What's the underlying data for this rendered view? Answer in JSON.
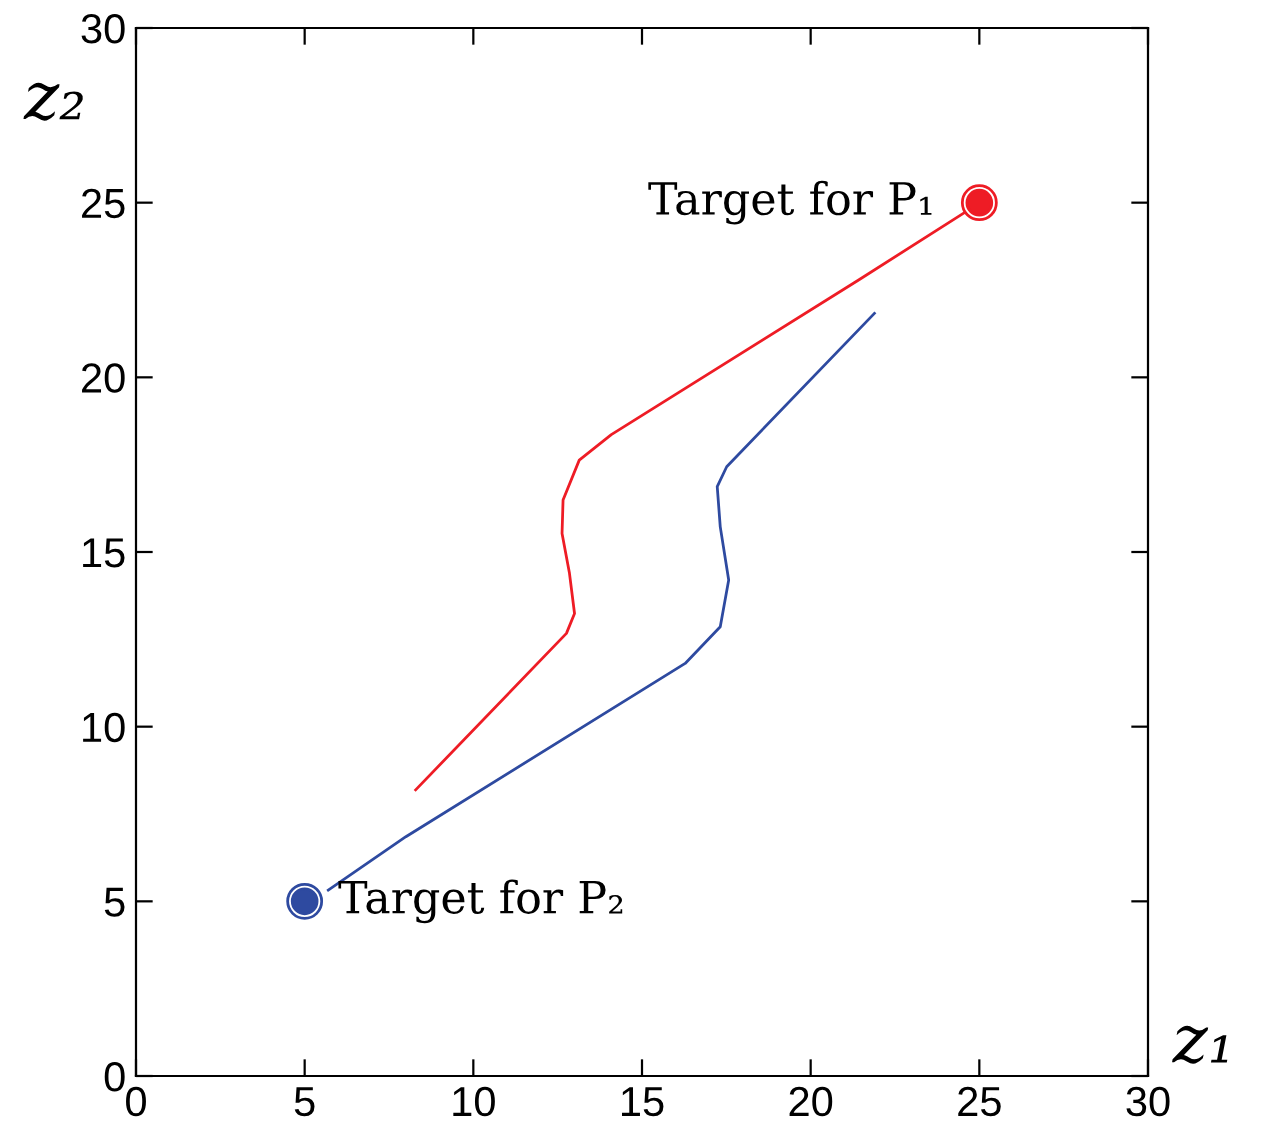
{
  "chart_data": {
    "type": "line",
    "xlabel": "z₁",
    "ylabel": "z₂",
    "xlim": [
      0,
      30
    ],
    "ylim": [
      0,
      30
    ],
    "xticks": [
      0,
      5,
      10,
      15,
      20,
      25,
      30
    ],
    "yticks": [
      0,
      5,
      10,
      15,
      20,
      25,
      30
    ],
    "grid": false,
    "legend": false,
    "series": [
      {
        "color": "#ee1c25",
        "x": [
          8.29,
          12.76,
          13.0,
          12.85,
          12.63,
          12.66,
          13.14,
          14.09,
          21.41,
          24.7
        ],
        "values": [
          8.19,
          12.67,
          13.24,
          14.39,
          15.53,
          16.49,
          17.63,
          18.36,
          22.78,
          24.8
        ]
      },
      {
        "color": "#2e4aa0",
        "x": [
          5.7,
          8.0,
          16.28,
          17.32,
          17.57,
          17.32,
          17.23,
          17.51,
          21.89
        ],
        "values": [
          5.32,
          6.85,
          11.81,
          12.86,
          14.2,
          15.72,
          16.87,
          17.44,
          21.83
        ]
      },
      {
        "type": "scatter",
        "marker": "circle",
        "color": "#ee1c25",
        "x": [
          25
        ],
        "values": [
          25
        ]
      },
      {
        "type": "scatter",
        "marker": "circle",
        "color": "#2e4aa0",
        "x": [
          5
        ],
        "values": [
          5
        ]
      }
    ],
    "annotations": [
      {
        "text": "Target for P₁",
        "x": 25,
        "y": 25
      },
      {
        "text": "Target for P₂",
        "x": 5,
        "y": 5
      }
    ]
  }
}
